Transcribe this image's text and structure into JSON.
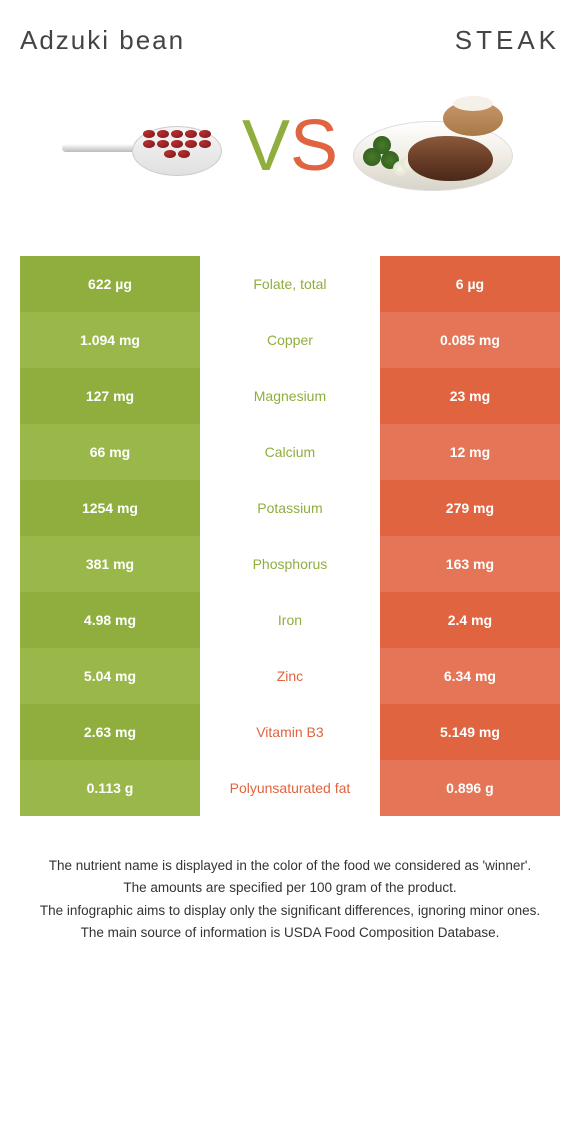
{
  "header": {
    "left": "Adzuki bean",
    "right": "STEAK"
  },
  "vs": {
    "v": "V",
    "s": "S"
  },
  "colors": {
    "green1": "#8fae3e",
    "green2": "#9ab84a",
    "orange1": "#e06440",
    "orange2": "#e47556",
    "white": "#ffffff"
  },
  "rows": [
    {
      "left": "622 µg",
      "mid": "Folate, total",
      "right": "6 µg",
      "winner": "green"
    },
    {
      "left": "1.094 mg",
      "mid": "Copper",
      "right": "0.085 mg",
      "winner": "green"
    },
    {
      "left": "127 mg",
      "mid": "Magnesium",
      "right": "23 mg",
      "winner": "green"
    },
    {
      "left": "66 mg",
      "mid": "Calcium",
      "right": "12 mg",
      "winner": "green"
    },
    {
      "left": "1254 mg",
      "mid": "Potassium",
      "right": "279 mg",
      "winner": "green"
    },
    {
      "left": "381 mg",
      "mid": "Phosphorus",
      "right": "163 mg",
      "winner": "green"
    },
    {
      "left": "4.98 mg",
      "mid": "Iron",
      "right": "2.4 mg",
      "winner": "green"
    },
    {
      "left": "5.04 mg",
      "mid": "Zinc",
      "right": "6.34 mg",
      "winner": "orange"
    },
    {
      "left": "2.63 mg",
      "mid": "Vitamin B3",
      "right": "5.149 mg",
      "winner": "orange"
    },
    {
      "left": "0.113 g",
      "mid": "Polyunsaturated fat",
      "right": "0.896 g",
      "winner": "orange"
    }
  ],
  "footer": {
    "l1": "The nutrient name is displayed in the color of the food we considered as 'winner'.",
    "l2": "The amounts are specified per 100 gram of the product.",
    "l3": "The infographic aims to display only the significant differences, ignoring minor ones.",
    "l4": "The main source of information is USDA Food Composition Database."
  }
}
